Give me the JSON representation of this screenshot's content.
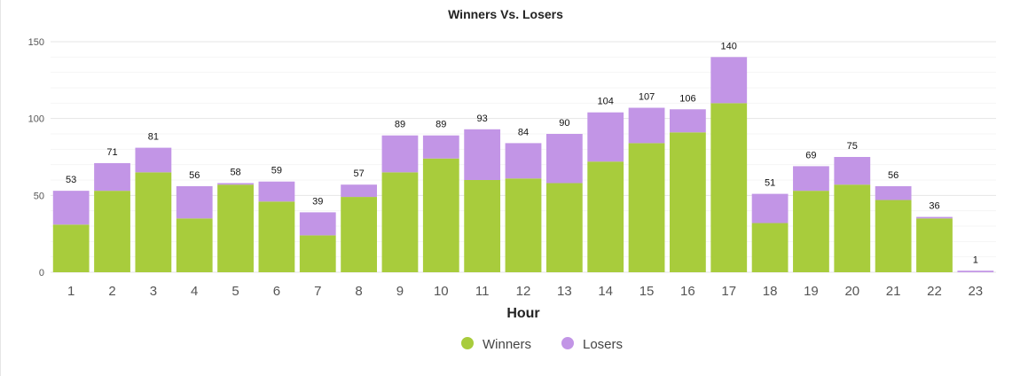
{
  "chart_data": {
    "type": "bar",
    "stacked": true,
    "title": "Winners Vs. Losers",
    "xlabel": "Hour",
    "ylabel": "",
    "ylim": [
      0,
      150
    ],
    "yticks": [
      0,
      50,
      100,
      150
    ],
    "grid": true,
    "legend_position": "bottom",
    "categories": [
      "1",
      "2",
      "3",
      "4",
      "5",
      "6",
      "7",
      "8",
      "9",
      "10",
      "11",
      "12",
      "13",
      "14",
      "15",
      "16",
      "17",
      "18",
      "19",
      "20",
      "21",
      "22",
      "23"
    ],
    "series": [
      {
        "name": "Winners",
        "color": "#a8cc3c",
        "values": [
          31,
          53,
          65,
          35,
          57,
          46,
          24,
          49,
          65,
          74,
          60,
          61,
          58,
          72,
          84,
          91,
          110,
          32,
          53,
          57,
          47,
          35,
          0
        ]
      },
      {
        "name": "Losers",
        "color": "#c295e6",
        "values": [
          22,
          18,
          16,
          21,
          1,
          13,
          15,
          8,
          24,
          15,
          33,
          23,
          32,
          32,
          23,
          15,
          30,
          19,
          16,
          18,
          9,
          1,
          1
        ]
      }
    ],
    "totals": [
      53,
      71,
      81,
      56,
      58,
      59,
      39,
      57,
      89,
      89,
      93,
      84,
      90,
      104,
      107,
      106,
      140,
      51,
      69,
      75,
      56,
      36,
      1
    ]
  }
}
